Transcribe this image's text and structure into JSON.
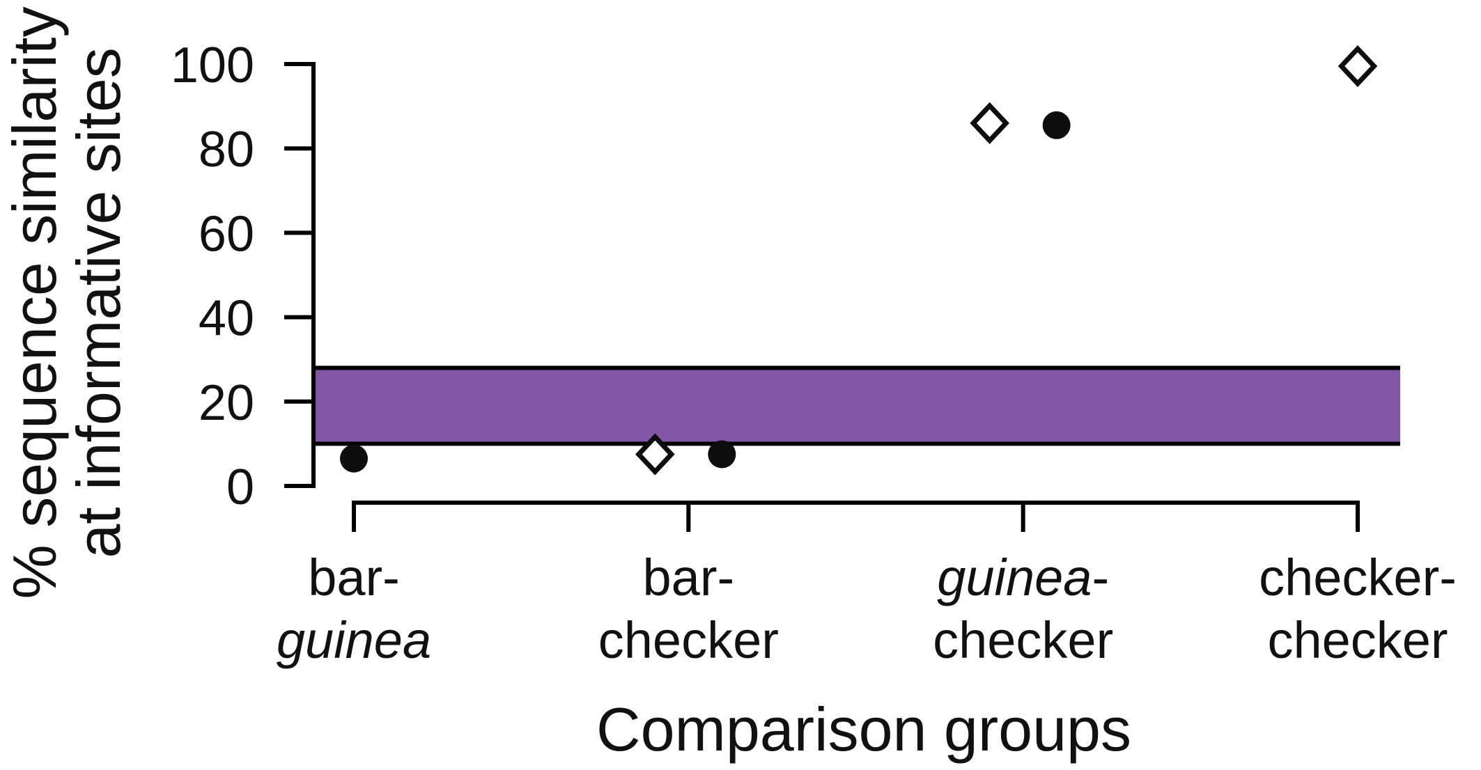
{
  "chart_data": {
    "type": "scatter",
    "title": "",
    "xlabel": "Comparison groups",
    "ylabel_lines": [
      "% sequence similarity",
      "at informative sites"
    ],
    "ylim": [
      0,
      100
    ],
    "yticks": [
      0,
      20,
      40,
      60,
      80,
      100
    ],
    "grid": false,
    "legend": null,
    "categories": [
      {
        "id": "bar-guinea",
        "line1": [
          {
            "text": "bar-",
            "italic": false
          }
        ],
        "line2": [
          {
            "text": "guinea",
            "italic": true
          }
        ]
      },
      {
        "id": "bar-checker",
        "line1": [
          {
            "text": "bar-",
            "italic": false
          }
        ],
        "line2": [
          {
            "text": "checker",
            "italic": false
          }
        ]
      },
      {
        "id": "guinea-checker",
        "line1": [
          {
            "text": "guinea",
            "italic": true
          },
          {
            "text": "-",
            "italic": false
          }
        ],
        "line2": [
          {
            "text": "checker",
            "italic": false
          }
        ]
      },
      {
        "id": "checker-checker",
        "line1": [
          {
            "text": "checker-",
            "italic": false
          }
        ],
        "line2": [
          {
            "text": "checker",
            "italic": false
          }
        ]
      }
    ],
    "series": [
      {
        "name": "open-diamond-marker",
        "marker": "diamond",
        "values": [
          null,
          7.5,
          86,
          99.5
        ]
      },
      {
        "name": "filled-circle-marker",
        "marker": "circle",
        "values": [
          6.5,
          7.5,
          85.5,
          null
        ]
      }
    ],
    "band": {
      "ymin": 10,
      "ymax": 28,
      "fill": "#8355A7",
      "border": "#000000"
    },
    "colors": {
      "marker_fill": "#0d0d0d",
      "axis": "#000000",
      "band_purple": "#8355A7"
    }
  }
}
